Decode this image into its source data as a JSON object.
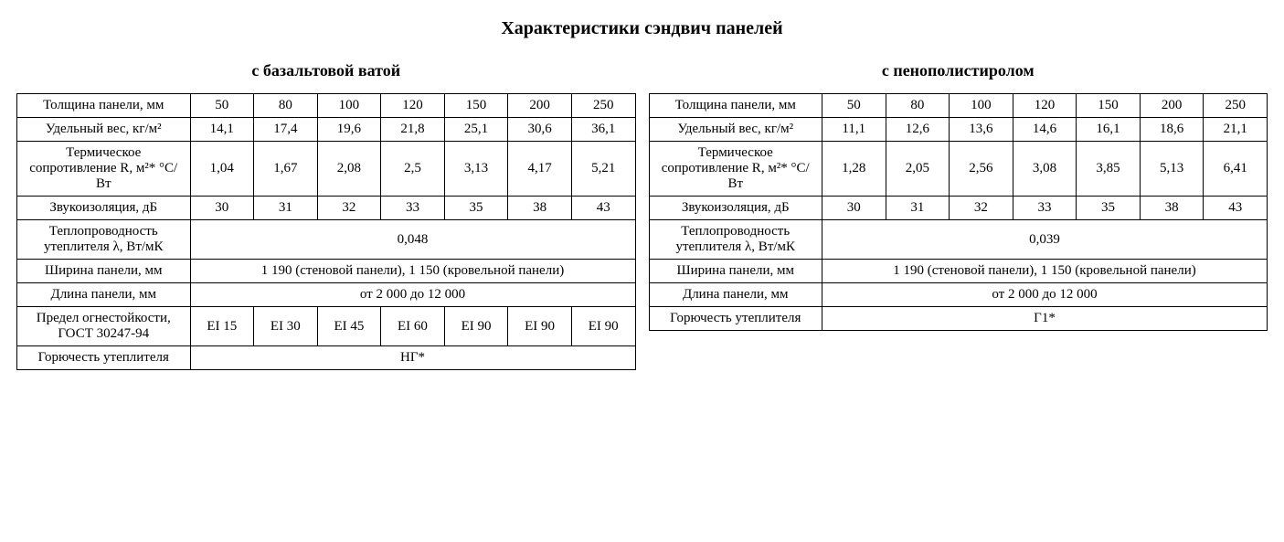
{
  "title": "Характеристики сэндвич панелей",
  "tables": {
    "basalt": {
      "heading": "с базальтовой ватой",
      "rows": {
        "thickness": {
          "label": "Толщина панели, мм",
          "vals": [
            "50",
            "80",
            "100",
            "120",
            "150",
            "200",
            "250"
          ]
        },
        "weight": {
          "label": "Удельный вес, кг/м²",
          "vals": [
            "14,1",
            "17,4",
            "19,6",
            "21,8",
            "25,1",
            "30,6",
            "36,1"
          ]
        },
        "thermal_r": {
          "label": "Термическое сопротивление R, м²* °C/Вт",
          "vals": [
            "1,04",
            "1,67",
            "2,08",
            "2,5",
            "3,13",
            "4,17",
            "5,21"
          ]
        },
        "sound": {
          "label": "Звукоизоляция, дБ",
          "vals": [
            "30",
            "31",
            "32",
            "33",
            "35",
            "38",
            "43"
          ]
        },
        "lambda": {
          "label": "Теплопроводность утеплителя λ, Вт/мК",
          "span": "0,048"
        },
        "width": {
          "label": "Ширина панели, мм",
          "span": "1 190 (стеновой панели), 1 150 (кровельной панели)"
        },
        "length": {
          "label": "Длина панели, мм",
          "span": "от 2 000 до 12 000"
        },
        "fire": {
          "label": "Предел огнестойкости, ГОСТ 30247-94",
          "vals": [
            "EI 15",
            "EI 30",
            "EI 45",
            "EI 60",
            "EI 90",
            "EI 90",
            "EI 90"
          ]
        },
        "flammability": {
          "label": "Горючесть утеплителя",
          "span": "НГ*"
        }
      }
    },
    "eps": {
      "heading": "с пенополистиролом",
      "rows": {
        "thickness": {
          "label": "Толщина панели, мм",
          "vals": [
            "50",
            "80",
            "100",
            "120",
            "150",
            "200",
            "250"
          ]
        },
        "weight": {
          "label": "Удельный вес, кг/м²",
          "vals": [
            "11,1",
            "12,6",
            "13,6",
            "14,6",
            "16,1",
            "18,6",
            "21,1"
          ]
        },
        "thermal_r": {
          "label": "Термическое сопротивление R, м²* °C/Вт",
          "vals": [
            "1,28",
            "2,05",
            "2,56",
            "3,08",
            "3,85",
            "5,13",
            "6,41"
          ]
        },
        "sound": {
          "label": "Звукоизоляция, дБ",
          "vals": [
            "30",
            "31",
            "32",
            "33",
            "35",
            "38",
            "43"
          ]
        },
        "lambda": {
          "label": "Теплопроводность утеплителя λ, Вт/мК",
          "span": "0,039"
        },
        "width": {
          "label": "Ширина панели, мм",
          "span": "1 190 (стеновой панели), 1 150 (кровельной панели)"
        },
        "length": {
          "label": "Длина панели, мм",
          "span": "от 2 000 до 12 000"
        },
        "flammability": {
          "label": "Горючесть утеплителя",
          "span": "Г1*"
        }
      }
    }
  },
  "layout": {
    "basalt_row_order": [
      "thickness",
      "weight",
      "thermal_r",
      "sound",
      "lambda",
      "width",
      "length",
      "fire",
      "flammability"
    ],
    "eps_row_order": [
      "thickness",
      "weight",
      "thermal_r",
      "sound",
      "lambda",
      "width",
      "length",
      "flammability"
    ],
    "span_left_rows": [
      "width"
    ]
  }
}
